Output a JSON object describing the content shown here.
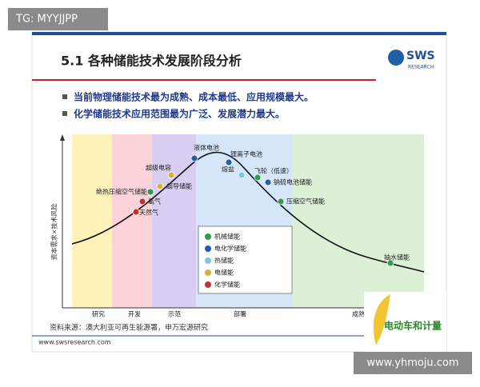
{
  "watermark_top": "TG: MYYJJPP",
  "watermark_bottom": "www.yhmoju.com",
  "slide": {
    "title": "5.1 各种储能技术发展阶段分析",
    "logo": "SWS",
    "logo_sub": "RESEARCH",
    "bullets": [
      "当前物理储能技术最为成熟、成本最低、应用规模最大。",
      "化学储能技术应用范围最为广泛、发展潜力最大。"
    ],
    "y_axis_label": "资本需求×技术风险",
    "stages": [
      "研究",
      "开发",
      "示范",
      "部署",
      "成熟"
    ],
    "legend": [
      {
        "name": "机械储能",
        "color": "#2e9a4a"
      },
      {
        "name": "电化学储能",
        "color": "#1f5fa8"
      },
      {
        "name": "热储能",
        "color": "#7fc8e0"
      },
      {
        "name": "电储能",
        "color": "#d8b040"
      },
      {
        "name": "化学储能",
        "color": "#c83030"
      }
    ],
    "nodes": [
      {
        "label": "液体电池",
        "category": 1
      },
      {
        "label": "锂离子电池",
        "category": 1
      },
      {
        "label": "超级电容",
        "category": 3
      },
      {
        "label": "熔盐",
        "category": 2
      },
      {
        "label": "飞轮（低速）",
        "category": 0
      },
      {
        "label": "超导储能",
        "category": 3
      },
      {
        "label": "钠硫电池储能",
        "category": 1
      },
      {
        "label": "绝热压缩空气储能",
        "category": 0
      },
      {
        "label": "氢气",
        "category": 4
      },
      {
        "label": "压缩空气储能",
        "category": 0
      },
      {
        "label": "天然气",
        "category": 4
      },
      {
        "label": "抽水储能",
        "category": 0
      }
    ],
    "source": "资料来源：澳大利亚可再生能源署，申万宏源研究",
    "url": "www.swsresearch.com",
    "badge": "电动车和计量"
  }
}
